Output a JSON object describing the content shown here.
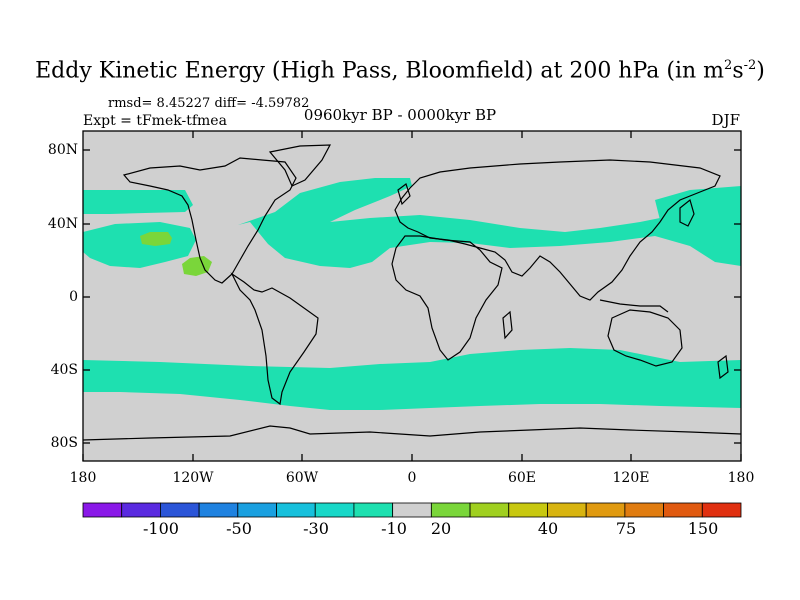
{
  "title": {
    "main": "Eddy Kinetic Energy (High Pass, Bloomfield) at 200 hPa (in m",
    "sup1": "2",
    "s": "s",
    "sup2": "-2",
    "close": ")"
  },
  "stats": "rmsd= 8.45227 diff= -4.59782",
  "experiment": "Expt = tFmek-tfmea",
  "period": "0960kyr BP - 0000kyr BP",
  "season": "DJF",
  "y_axis_labels": [
    "80N",
    "40N",
    "0",
    "40S",
    "80S"
  ],
  "x_axis_labels": [
    "180",
    "120W",
    "60W",
    "0",
    "60E",
    "120E",
    "180"
  ],
  "colorbar": {
    "colors": [
      "#8a18e8",
      "#5a2ae0",
      "#2b55d8",
      "#1f82e0",
      "#1aa0e0",
      "#17c0dc",
      "#18d8c8",
      "#1ee0b0",
      "#d0d0d0",
      "#7ad63a",
      "#a0d020",
      "#c8c810",
      "#d8b410",
      "#e09a10",
      "#e07c10",
      "#e05a10",
      "#e03010"
    ],
    "labels": [
      "-100",
      "-50",
      "-30",
      "-10",
      "20",
      "40",
      "75",
      "150"
    ]
  },
  "map_colors": {
    "background": "#d0d0d0",
    "negative_anomaly": "#1ee0b0",
    "positive_anomaly": "#7ad63a"
  }
}
